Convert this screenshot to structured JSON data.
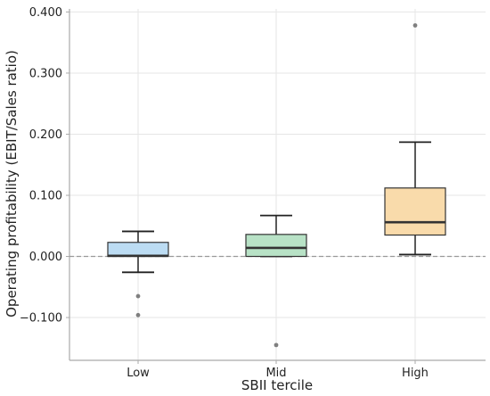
{
  "chart_data": {
    "type": "box",
    "title": "",
    "xlabel": "SBII tercile",
    "ylabel": "Operating profitability (EBIT/Sales ratio)",
    "ylim": [
      -0.17,
      0.405
    ],
    "yticks": [
      -0.1,
      0.0,
      0.1,
      0.2,
      0.3,
      0.4
    ],
    "ytick_labels": [
      "−0.100",
      "0.000",
      "0.100",
      "0.200",
      "0.300",
      "0.400"
    ],
    "grid": true,
    "reference_line": 0.0,
    "categories": [
      "Low",
      "Mid",
      "High"
    ],
    "boxes": [
      {
        "category": "Low",
        "whisker_low": -0.026,
        "q1": 0.0,
        "median": 0.001,
        "q3": 0.023,
        "whisker_high": 0.041,
        "outliers": [
          -0.065,
          -0.096
        ],
        "color": "#bcdcf3"
      },
      {
        "category": "Mid",
        "whisker_low": 0.0,
        "q1": 0.0,
        "median": 0.014,
        "q3": 0.036,
        "whisker_high": 0.067,
        "outliers": [
          -0.145
        ],
        "color": "#b8e2c6"
      },
      {
        "category": "High",
        "whisker_low": 0.003,
        "q1": 0.035,
        "median": 0.056,
        "q3": 0.112,
        "whisker_high": 0.187,
        "outliers": [
          0.378
        ],
        "color": "#f9dbab"
      }
    ]
  }
}
